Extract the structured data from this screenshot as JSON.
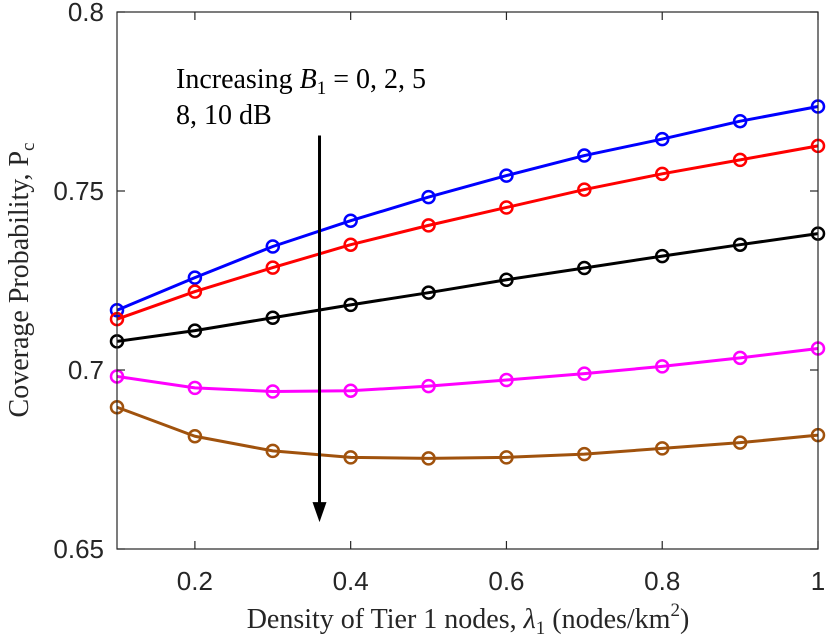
{
  "chart_data": {
    "type": "line",
    "xlabel_text": "Density of Tier 1 nodes, ",
    "xlabel_symbol": "λ",
    "xlabel_sub": "1",
    "xlabel_units": " (nodes/km",
    "xlabel_sup": "2",
    "xlabel_close": ")",
    "ylabel_text": "Coverage Probability, P",
    "ylabel_sub": "c",
    "xlim": [
      0.1,
      1.0
    ],
    "ylim": [
      0.65,
      0.8
    ],
    "xticks": [
      0.2,
      0.4,
      0.6,
      0.8,
      1.0
    ],
    "xtick_labels": [
      "0.2",
      "0.4",
      "0.6",
      "0.8",
      "1"
    ],
    "yticks": [
      0.65,
      0.7,
      0.75,
      0.8
    ],
    "ytick_labels": [
      "0.65",
      "0.7",
      "0.75",
      "0.8"
    ],
    "grid": false,
    "x": [
      0.1,
      0.2,
      0.3,
      0.4,
      0.5,
      0.6,
      0.7,
      0.8,
      0.9,
      1.0
    ],
    "series": [
      {
        "color": "#0000ff",
        "values": [
          0.7167,
          0.7258,
          0.7345,
          0.7417,
          0.7483,
          0.7543,
          0.7599,
          0.7645,
          0.7695,
          0.7736
        ]
      },
      {
        "color": "#ff0000",
        "values": [
          0.7142,
          0.7219,
          0.7286,
          0.735,
          0.7404,
          0.7454,
          0.7504,
          0.7548,
          0.7587,
          0.7626
        ]
      },
      {
        "color": "#000000",
        "values": [
          0.708,
          0.711,
          0.7146,
          0.7182,
          0.7216,
          0.7252,
          0.7285,
          0.7318,
          0.735,
          0.7381
        ]
      },
      {
        "color": "#ff00ff",
        "values": [
          0.6982,
          0.695,
          0.694,
          0.6942,
          0.6955,
          0.6972,
          0.699,
          0.701,
          0.7034,
          0.706
        ]
      },
      {
        "color": "#a0520d",
        "values": [
          0.6896,
          0.6815,
          0.6774,
          0.6756,
          0.6753,
          0.6756,
          0.6765,
          0.6781,
          0.6797,
          0.6818
        ]
      }
    ],
    "annotation": {
      "line1_prefix": "Increasing ",
      "line1_var": "B",
      "line1_sub": "1",
      "line1_rest": " = 0, 2, 5",
      "line2": "8, 10 dB",
      "arrow_x": 0.36,
      "arrow_y_start": 0.7655,
      "arrow_y_end": 0.6575
    }
  }
}
